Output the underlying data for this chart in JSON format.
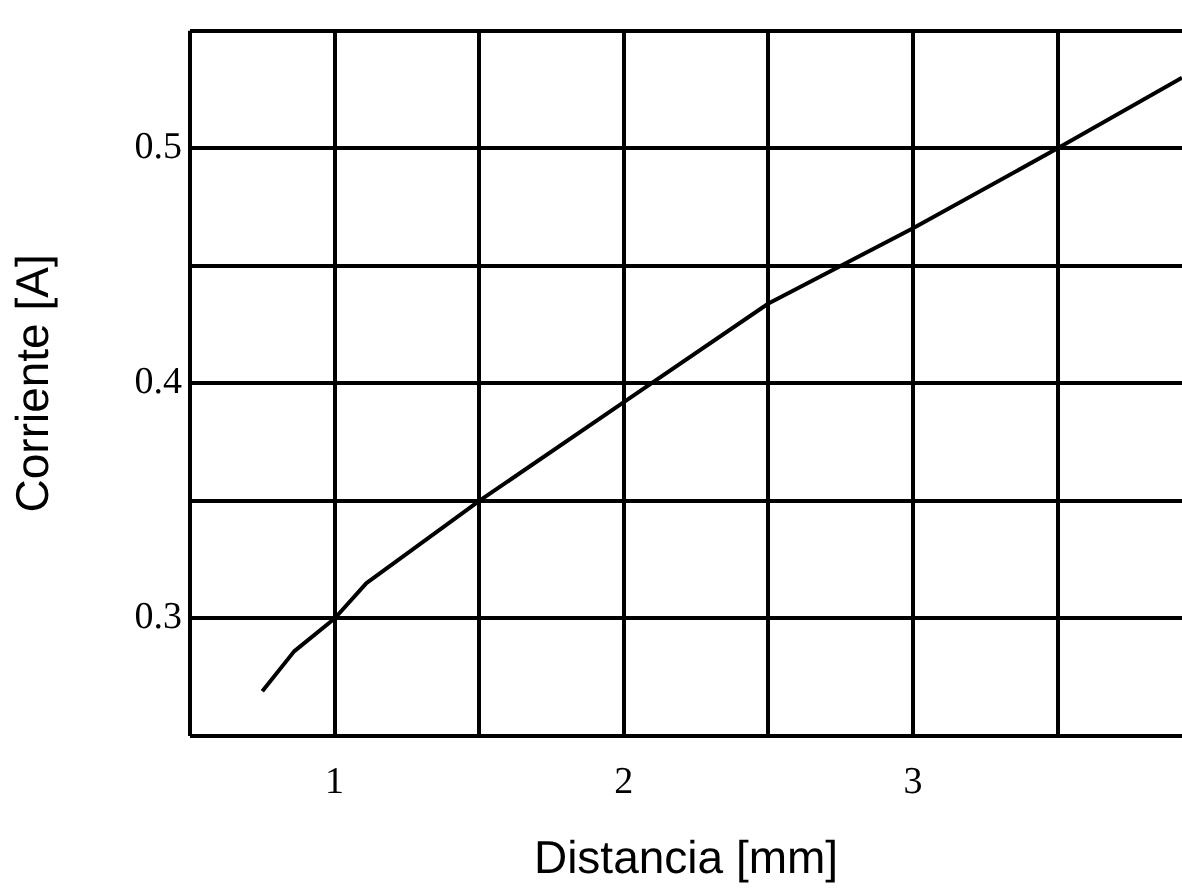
{
  "chart_data": {
    "type": "line",
    "xlabel": "Distancia [mm]",
    "ylabel": "Corriente [A]",
    "xlim": [
      0.5,
      3.93
    ],
    "ylim": [
      0.25,
      0.55
    ],
    "xticks": [
      {
        "value": 0.5,
        "label": null
      },
      1,
      {
        "value": 1.5,
        "label": null
      },
      2,
      {
        "value": 2.5,
        "label": null
      },
      3,
      {
        "value": 3.5,
        "label": null
      }
    ],
    "yticks": [
      {
        "value": 0.25,
        "label": null
      },
      0.3,
      {
        "value": 0.35,
        "label": null
      },
      0.4,
      {
        "value": 0.45,
        "label": null
      },
      0.5,
      {
        "value": 0.55,
        "label": null
      }
    ],
    "grid": true,
    "marker": "none",
    "line_style": "solid",
    "series": [
      {
        "color": "#000000",
        "x": [
          0.75,
          0.86,
          1.0,
          1.11,
          1.5,
          2.0,
          2.5,
          3.0,
          3.5,
          3.93
        ],
        "values": [
          0.269,
          0.286,
          0.3,
          0.315,
          0.35,
          0.392,
          0.434,
          0.466,
          0.5,
          0.53
        ]
      }
    ]
  }
}
